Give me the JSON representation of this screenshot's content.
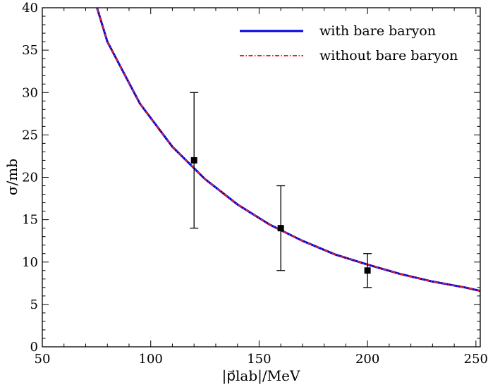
{
  "chart_data": {
    "type": "line",
    "xlabel": "|p⃗lab|/MeV",
    "ylabel": "σ/mb",
    "xlim": [
      50,
      252
    ],
    "ylim": [
      0,
      40
    ],
    "xticks": [
      50,
      100,
      150,
      200,
      250
    ],
    "yticks": [
      0,
      5,
      10,
      15,
      20,
      25,
      30,
      35,
      40
    ],
    "grid": false,
    "legend_position": "top-right",
    "series": [
      {
        "name": "with bare baryon",
        "color": "#0000dd",
        "style": "solid",
        "x": [
          72,
          75,
          80,
          95,
          110,
          125,
          140,
          155,
          170,
          185,
          200,
          215,
          230,
          245,
          252
        ],
        "y": [
          44,
          40.2,
          36,
          28.7,
          23.6,
          19.8,
          16.8,
          14.4,
          12.5,
          10.9,
          9.7,
          8.6,
          7.7,
          7.0,
          6.6
        ]
      },
      {
        "name": "without bare baryon",
        "color": "#ee2222",
        "style": "dashdot",
        "x": [
          72,
          75,
          80,
          95,
          110,
          125,
          140,
          155,
          170,
          185,
          200,
          215,
          230,
          245,
          252
        ],
        "y": [
          44,
          40.2,
          36,
          28.7,
          23.6,
          19.8,
          16.8,
          14.4,
          12.5,
          10.9,
          9.7,
          8.6,
          7.7,
          7.0,
          6.6
        ]
      }
    ],
    "data_points": [
      {
        "x": 120,
        "y": 22,
        "err_low": 14,
        "err_high": 30
      },
      {
        "x": 160,
        "y": 14,
        "err_low": 9,
        "err_high": 19
      },
      {
        "x": 200,
        "y": 9,
        "err_low": 7,
        "err_high": 11
      }
    ]
  }
}
